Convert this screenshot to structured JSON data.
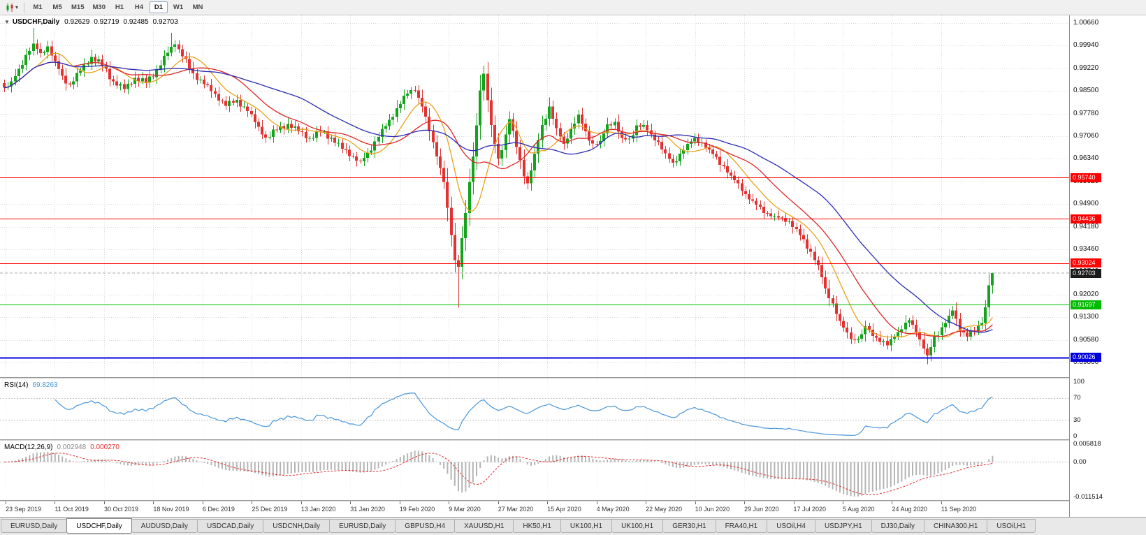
{
  "toolbar": {
    "caret": "▾",
    "periods": [
      "M1",
      "M5",
      "M15",
      "M30",
      "H1",
      "H4",
      "D1",
      "W1",
      "MN"
    ],
    "active_period": "D1"
  },
  "chart": {
    "collapse_glyph": "▼",
    "symbol": "USDCHF,Daily",
    "ohlc": {
      "open": "0.92629",
      "high": "0.92719",
      "low": "0.92485",
      "close": "0.92703"
    },
    "price_axis_ticks": [
      "1.00660",
      "0.99940",
      "0.99220",
      "0.98500",
      "0.97780",
      "0.97060",
      "0.96340",
      "0.95620",
      "0.94900",
      "0.94180",
      "0.93460",
      "0.92740",
      "0.92020",
      "0.91300",
      "0.90580",
      "0.89860"
    ],
    "levels": [
      {
        "price": 0.9574,
        "label": "0.95740",
        "color": "#ff0000",
        "thickness": 1
      },
      {
        "price": 0.94436,
        "label": "0.94436",
        "color": "#ff0000",
        "thickness": 1
      },
      {
        "price": 0.93024,
        "label": "0.93024",
        "color": "#ff0000",
        "thickness": 1
      },
      {
        "price": 0.91697,
        "label": "0.91697",
        "color": "#00bb00",
        "thickness": 1
      },
      {
        "price": 0.90026,
        "label": "0.90026",
        "color": "#0000dd",
        "thickness": 2
      }
    ],
    "current_price": {
      "price": 0.92703,
      "label": "0.92703",
      "tag_color": "#1a1a1a"
    }
  },
  "rsi": {
    "name": "RSI(14)",
    "value": "69.8263",
    "axis": [
      "100",
      "70",
      "30",
      "0"
    ],
    "levels": [
      70,
      30
    ],
    "line_color": "#4a96dc"
  },
  "macd": {
    "name": "MACD(12,26,9)",
    "macd_value": "0.002948",
    "signal_value": "0.000270",
    "axis_top": "0.005818",
    "axis_zero": "0.00",
    "axis_bottom": "-0.011514",
    "range": {
      "max": 0.005818,
      "min": -0.011514
    },
    "histogram_color": "#b4b4b4",
    "signal_color": "#e03030"
  },
  "time_axis": {
    "labels": [
      "23 Sep 2019",
      "11 Oct 2019",
      "30 Oct 2019",
      "18 Nov 2019",
      "6 Dec 2019",
      "25 Dec 2019",
      "13 Jan 2020",
      "31 Jan 2020",
      "19 Feb 2020",
      "9 Mar 2020",
      "27 Mar 2020",
      "15 Apr 2020",
      "4 May 2020",
      "22 May 2020",
      "10 Jun 2020",
      "29 Jun 2020",
      "17 Jul 2020",
      "5 Aug 2020",
      "24 Aug 2020",
      "11 Sep 2020"
    ]
  },
  "tabs": [
    "EURUSD,Daily",
    "USDCHF,Daily",
    "AUDUSD,Daily",
    "USDCAD,Daily",
    "USDCNH,Daily",
    "EURUSD,Daily",
    "GBPUSD,H4",
    "XAUUSD,H1",
    "HK50,H1",
    "UK100,H1",
    "UK100,H1",
    "GER30,H1",
    "FRA40,H1",
    "USOil,H4",
    "USDJPY,H1",
    "DJ30,Daily",
    "CHINA300,H1",
    "USOil,H1"
  ],
  "active_tab_index": 1,
  "chart_data": {
    "type": "candlestick",
    "symbol": "USDCHF",
    "timeframe": "D1",
    "price_min_visible": 0.89393,
    "price_max_visible": 1.00904,
    "candle_count": 273,
    "up_color": "#14a31c",
    "down_color": "#e23232",
    "close_anchors": [
      [
        0,
        0.986
      ],
      [
        2,
        0.988
      ],
      [
        4,
        0.992
      ],
      [
        6,
        0.9965
      ],
      [
        8,
        1.0
      ],
      [
        10,
        0.997
      ],
      [
        12,
        0.9992
      ],
      [
        14,
        0.9945
      ],
      [
        16,
        0.9898
      ],
      [
        18,
        0.987
      ],
      [
        21,
        0.9915
      ],
      [
        24,
        0.9958
      ],
      [
        27,
        0.9932
      ],
      [
        30,
        0.988
      ],
      [
        33,
        0.9856
      ],
      [
        36,
        0.9892
      ],
      [
        39,
        0.9876
      ],
      [
        42,
        0.9918
      ],
      [
        45,
        0.9972
      ],
      [
        47,
        0.9998
      ],
      [
        49,
        0.996
      ],
      [
        52,
        0.9906
      ],
      [
        55,
        0.9872
      ],
      [
        58,
        0.984
      ],
      [
        61,
        0.9802
      ],
      [
        64,
        0.9822
      ],
      [
        67,
        0.9786
      ],
      [
        70,
        0.9736
      ],
      [
        72,
        0.9702
      ],
      [
        75,
        0.9726
      ],
      [
        78,
        0.9745
      ],
      [
        81,
        0.9722
      ],
      [
        84,
        0.97
      ],
      [
        87,
        0.972
      ],
      [
        90,
        0.9702
      ],
      [
        93,
        0.9666
      ],
      [
        96,
        0.9642
      ],
      [
        98,
        0.9626
      ],
      [
        100,
        0.9654
      ],
      [
        103,
        0.9704
      ],
      [
        106,
        0.9758
      ],
      [
        109,
        0.9808
      ],
      [
        111,
        0.9842
      ],
      [
        113,
        0.9852
      ],
      [
        115,
        0.98
      ],
      [
        117,
        0.9722
      ],
      [
        119,
        0.9642
      ],
      [
        121,
        0.956
      ],
      [
        122,
        0.9478
      ],
      [
        123,
        0.9392
      ],
      [
        124,
        0.9312
      ],
      [
        125,
        0.929
      ],
      [
        126,
        0.9382
      ],
      [
        127,
        0.9462
      ],
      [
        128,
        0.956
      ],
      [
        129,
        0.9642
      ],
      [
        130,
        0.974
      ],
      [
        131,
        0.9852
      ],
      [
        132,
        0.9905
      ],
      [
        133,
        0.982
      ],
      [
        134,
        0.9742
      ],
      [
        135,
        0.9682
      ],
      [
        136,
        0.9635
      ],
      [
        137,
        0.9662
      ],
      [
        138,
        0.9712
      ],
      [
        139,
        0.976
      ],
      [
        141,
        0.9672
      ],
      [
        143,
        0.9578
      ],
      [
        144,
        0.9556
      ],
      [
        146,
        0.965
      ],
      [
        148,
        0.9742
      ],
      [
        150,
        0.98
      ],
      [
        152,
        0.9732
      ],
      [
        154,
        0.9682
      ],
      [
        156,
        0.973
      ],
      [
        158,
        0.9775
      ],
      [
        160,
        0.9722
      ],
      [
        162,
        0.9682
      ],
      [
        164,
        0.969
      ],
      [
        166,
        0.9744
      ],
      [
        168,
        0.9752
      ],
      [
        170,
        0.97
      ],
      [
        172,
        0.9698
      ],
      [
        174,
        0.974
      ],
      [
        176,
        0.9742
      ],
      [
        178,
        0.9712
      ],
      [
        180,
        0.9688
      ],
      [
        182,
        0.9652
      ],
      [
        184,
        0.9622
      ],
      [
        186,
        0.965
      ],
      [
        188,
        0.9682
      ],
      [
        190,
        0.97
      ],
      [
        192,
        0.9686
      ],
      [
        194,
        0.9664
      ],
      [
        196,
        0.964
      ],
      [
        198,
        0.961
      ],
      [
        200,
        0.958
      ],
      [
        202,
        0.9556
      ],
      [
        204,
        0.9522
      ],
      [
        206,
        0.95
      ],
      [
        208,
        0.9482
      ],
      [
        210,
        0.946
      ],
      [
        212,
        0.9452
      ],
      [
        214,
        0.9446
      ],
      [
        216,
        0.9436
      ],
      [
        218,
        0.941
      ],
      [
        220,
        0.9378
      ],
      [
        222,
        0.9338
      ],
      [
        224,
        0.9296
      ],
      [
        226,
        0.9222
      ],
      [
        228,
        0.9174
      ],
      [
        230,
        0.9118
      ],
      [
        232,
        0.9082
      ],
      [
        234,
        0.9058
      ],
      [
        236,
        0.9076
      ],
      [
        237,
        0.9102
      ],
      [
        239,
        0.907
      ],
      [
        241,
        0.9052
      ],
      [
        243,
        0.904
      ],
      [
        245,
        0.9068
      ],
      [
        247,
        0.9092
      ],
      [
        249,
        0.912
      ],
      [
        251,
        0.9082
      ],
      [
        253,
        0.903
      ],
      [
        254,
        0.9008
      ],
      [
        256,
        0.9068
      ],
      [
        258,
        0.9098
      ],
      [
        260,
        0.9135
      ],
      [
        261,
        0.9152
      ],
      [
        263,
        0.9088
      ],
      [
        265,
        0.9068
      ],
      [
        267,
        0.9086
      ],
      [
        269,
        0.9112
      ],
      [
        270,
        0.9162
      ],
      [
        271,
        0.9232
      ],
      [
        272,
        0.927
      ]
    ],
    "forced_wicks": {
      "8": {
        "high": 1.005
      },
      "46": {
        "high": 1.0035
      },
      "125": {
        "low": 0.916
      },
      "132": {
        "high": 0.993
      },
      "254": {
        "low": 0.898
      },
      "272": {
        "high": 0.9272
      }
    },
    "moving_averages": [
      {
        "period": 10,
        "color": "#e8a21c"
      },
      {
        "period": 20,
        "color": "#dc2626"
      },
      {
        "period": 40,
        "color": "#2b2bb4"
      }
    ]
  }
}
